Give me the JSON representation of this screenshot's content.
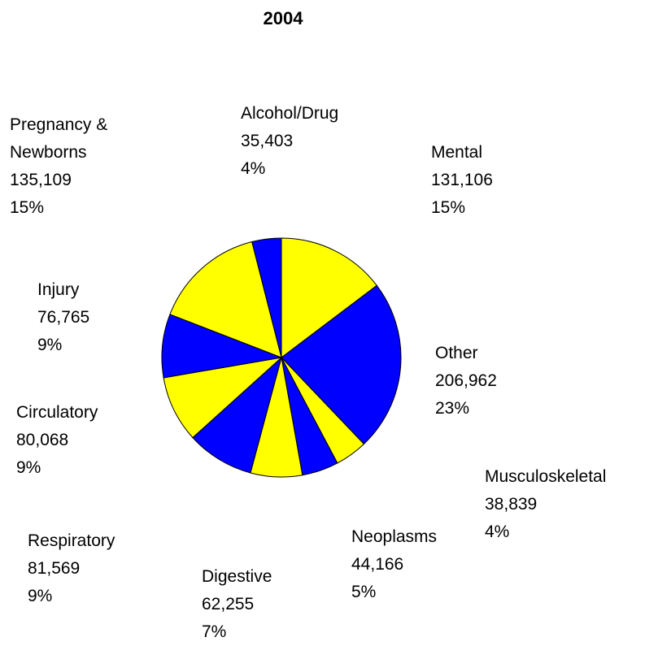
{
  "chart_data": {
    "type": "pie",
    "title": "2004",
    "categories": [
      "Mental",
      "Other",
      "Musculoskeletal",
      "Neoplasms",
      "Digestive",
      "Respiratory",
      "Circulatory",
      "Injury",
      "Pregnancy & Newborns",
      "Alcohol/Drug"
    ],
    "values": [
      131106,
      206962,
      38839,
      44166,
      62255,
      81569,
      80068,
      76765,
      135109,
      35403
    ],
    "value_labels": [
      "131,106",
      "206,962",
      "38,839",
      "44,166",
      "62,255",
      "81,569",
      "80,068",
      "76,765",
      "135,109",
      "35,403"
    ],
    "percent_labels": [
      "15%",
      "23%",
      "4%",
      "5%",
      "7%",
      "9%",
      "9%",
      "9%",
      "15%",
      "4%"
    ],
    "colors": [
      "#ffff00",
      "#0000ff",
      "#ffff00",
      "#0000ff",
      "#ffff00",
      "#0000ff",
      "#ffff00",
      "#0000ff",
      "#ffff00",
      "#0000ff"
    ]
  }
}
